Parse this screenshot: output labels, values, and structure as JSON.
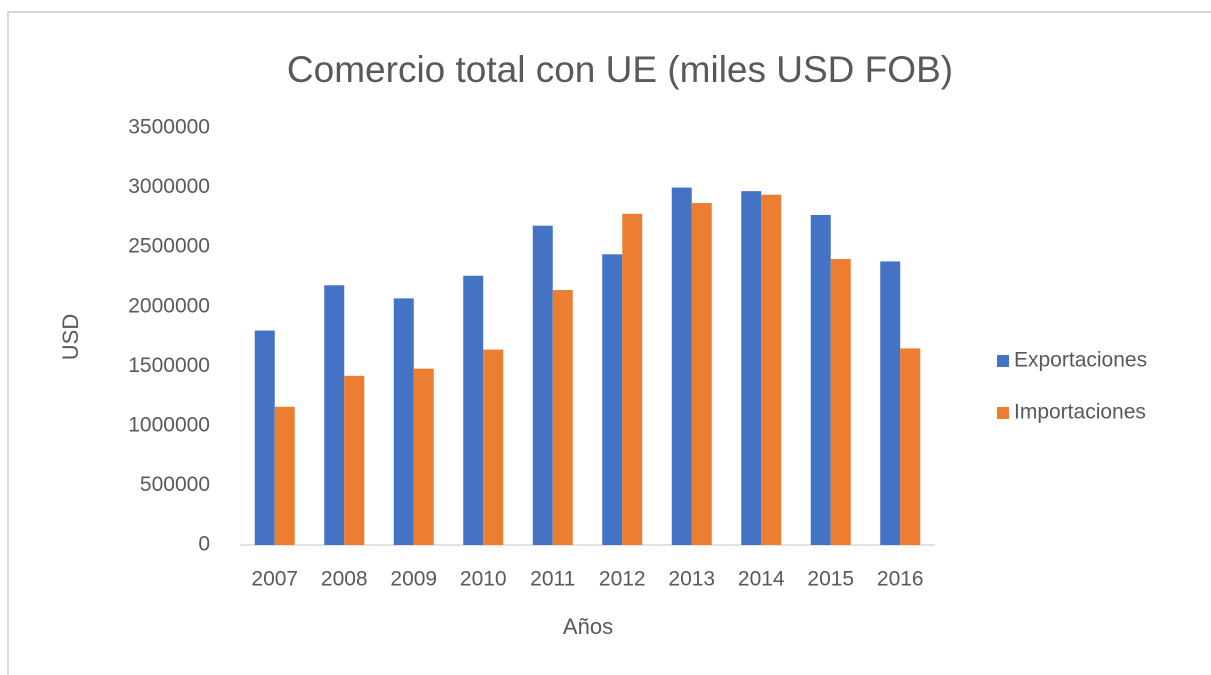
{
  "chart_data": {
    "type": "bar",
    "title": "Comercio total con UE (miles USD FOB)",
    "x_label": "Años",
    "y_label": "USD",
    "categories": [
      "2007",
      "2008",
      "2009",
      "2010",
      "2011",
      "2012",
      "2013",
      "2014",
      "2015",
      "2016"
    ],
    "series": [
      {
        "name": "Exportaciones",
        "color": "#4472c4",
        "values": [
          1800000,
          2180000,
          2070000,
          2260000,
          2680000,
          2440000,
          3000000,
          2970000,
          2770000,
          2380000
        ]
      },
      {
        "name": "Importaciones",
        "color": "#ed7d31",
        "values": [
          1160000,
          1420000,
          1480000,
          1640000,
          2140000,
          2780000,
          2870000,
          2940000,
          2400000,
          1650000
        ]
      }
    ],
    "ylim": [
      0,
      3500000
    ],
    "yticks": [
      0,
      500000,
      1000000,
      1500000,
      2000000,
      2500000,
      3000000,
      3500000
    ],
    "grid": false,
    "legend": "right"
  }
}
